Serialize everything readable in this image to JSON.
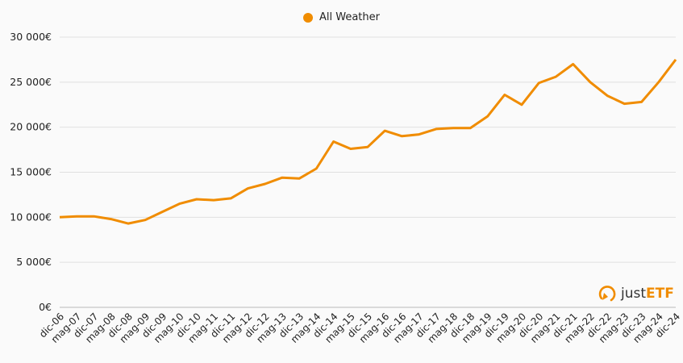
{
  "legend": {
    "label": "All Weather",
    "color": "#f08c00"
  },
  "logo": {
    "just": "just",
    "etf": "ETF"
  },
  "chart_data": {
    "type": "line",
    "title": "",
    "xlabel": "",
    "ylabel": "",
    "ylim": [
      0,
      30000
    ],
    "grid": true,
    "legend_position": "top-center",
    "y_ticks": [
      "0€",
      "5 000€",
      "10 000€",
      "15 000€",
      "20 000€",
      "25 000€",
      "30 000€"
    ],
    "y_tick_values": [
      0,
      5000,
      10000,
      15000,
      20000,
      25000,
      30000
    ],
    "x_ticks": [
      "dic-06",
      "mag-07",
      "dic-07",
      "mag-08",
      "dic-08",
      "mag-09",
      "dic-09",
      "mag-10",
      "dic-10",
      "mag-11",
      "dic-11",
      "mag-12",
      "dic-12",
      "mag-13",
      "dic-13",
      "mag-14",
      "dic-14",
      "mag-15",
      "dic-15",
      "mag-16",
      "dic-16",
      "mag-17",
      "dic-17",
      "mag-18",
      "dic-18",
      "mag-19",
      "dic-19",
      "mag-20",
      "dic-20",
      "mag-21",
      "dic-21",
      "mag-22",
      "dic-22",
      "mag-23",
      "dic-23",
      "mag-24",
      "dic-24"
    ],
    "series": [
      {
        "name": "All Weather",
        "color": "#f08c00",
        "x": [
          "dic-06",
          "mag-07",
          "dic-07",
          "mag-08",
          "dic-08",
          "mag-09",
          "dic-09",
          "mag-10",
          "dic-10",
          "mag-11",
          "dic-11",
          "mag-12",
          "dic-12",
          "mag-13",
          "dic-13",
          "mag-14",
          "dic-14",
          "mag-15",
          "dic-15",
          "mag-16",
          "dic-16",
          "mag-17",
          "dic-17",
          "mag-18",
          "dic-18",
          "mag-19",
          "dic-19",
          "mag-20",
          "dic-20",
          "mag-21",
          "dic-21",
          "mag-22",
          "dic-22",
          "mag-23",
          "dic-23",
          "mag-24",
          "dic-24"
        ],
        "values": [
          10000,
          10100,
          10100,
          9800,
          9300,
          9700,
          10600,
          11500,
          12000,
          11900,
          12100,
          13200,
          13700,
          14400,
          14300,
          15400,
          18400,
          17600,
          17800,
          19600,
          19000,
          19200,
          19800,
          19900,
          19900,
          21200,
          23600,
          22500,
          24900,
          25600,
          27000,
          25000,
          23500,
          22600,
          22800,
          25000,
          27500
        ]
      }
    ]
  }
}
